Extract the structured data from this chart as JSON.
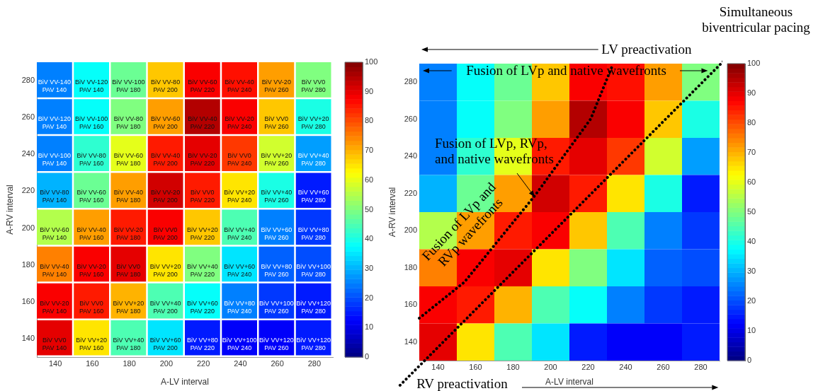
{
  "chart_data": [
    {
      "type": "heatmap",
      "xlabel": "A-LV interval",
      "ylabel": "A-RV interval",
      "categories": [
        "140",
        "160",
        "180",
        "200",
        "220",
        "240",
        "260",
        "280"
      ],
      "y_categories": [
        "280",
        "260",
        "240",
        "220",
        "200",
        "180",
        "160",
        "140"
      ],
      "clim": [
        0,
        100
      ],
      "cticks": [
        0,
        10,
        20,
        30,
        40,
        50,
        60,
        70,
        80,
        90,
        100
      ],
      "cells": [
        [
          25,
          38,
          48,
          68,
          88,
          86,
          72,
          50
        ],
        [
          25,
          38,
          50,
          72,
          95,
          88,
          68,
          40
        ],
        [
          25,
          42,
          60,
          85,
          90,
          82,
          58,
          28
        ],
        [
          30,
          48,
          72,
          92,
          85,
          65,
          40,
          15
        ],
        [
          55,
          72,
          85,
          88,
          68,
          45,
          25,
          18
        ],
        [
          75,
          88,
          90,
          65,
          50,
          35,
          22,
          20
        ],
        [
          88,
          85,
          70,
          45,
          38,
          25,
          18,
          15
        ],
        [
          90,
          65,
          45,
          35,
          15,
          12,
          12,
          15
        ]
      ],
      "cell_labels": [
        [
          "BiV VV-140\nPAV 140",
          "BiV VV-120\nPAV 140",
          "BiV VV-100\nPAV 180",
          "BiV VV-80\nPAV 200",
          "BiV VV-60\nPAV 220",
          "BiV VV-40\nPAV 240",
          "BiV VV-20\nPAV 260",
          "BiV VV0\nPAV 280"
        ],
        [
          "BiV VV-120\nPAV 140",
          "BiV VV-100\nPAV 160",
          "BiV VV-80\nPAV 180",
          "BiV VV-60\nPAV 200",
          "BiV VV-40\nPAV 220",
          "BiV VV-20\nPAV 240",
          "BiV VV0\nPAV 260",
          "BiV VV+20\nPAV 280"
        ],
        [
          "BiV VV-100\nPAV 140",
          "BiV VV-80\nPAV 160",
          "BiV VV-60\nPAV 180",
          "BiV VV-40\nPAV 200",
          "BiV VV-20\nPAV 220",
          "BiV VV0\nPAV 240",
          "BiV VV+20\nPAV 260",
          "BiV VV+40\nPAV 280"
        ],
        [
          "BiV VV-80\nPAV 140",
          "BiV VV-60\nPAV 160",
          "BiV VV-40\nPAV 180",
          "BiV VV-20\nPAV 200",
          "BiV VV0\nPAV 220",
          "BiV VV+20\nPAV 240",
          "BiV VV+40\nPAV 260",
          "BiV VV+60\nPAV 280"
        ],
        [
          "BiV VV-60\nPAV 140",
          "BiV VV-40\nPAV 160",
          "BiV VV-20\nPAV 180",
          "BiV VV0\nPAV 200",
          "BiV VV+20\nPAV 220",
          "BiV VV+40\nPAV 240",
          "BiV VV+60\nPAV 260",
          "BiV VV+80\nPAV 280"
        ],
        [
          "BiV VV-40\nPAV 140",
          "BiV VV-20\nPAV 160",
          "BiV VV0\nPAV 180",
          "BiV VV+20\nPAV 200",
          "BiV VV+40\nPAV 220",
          "BiV VV+60\nPAV 240",
          "BiV VV+80\nPAV 260",
          "BiV VV+100\nPAV 280"
        ],
        [
          "BiV VV-20\nPAV 140",
          "BiV VV0\nPAV 160",
          "BiV VV+20\nPAV 180",
          "BiV VV+40\nPAV 200",
          "BiV VV+60\nPAV 220",
          "BiV VV+80\nPAV 240",
          "BiV VV+100\nPAV 260",
          "BiV VV+120\nPAV 280"
        ],
        [
          "BiV VV0\nPAV 140",
          "BiV VV+20\nPAV 160",
          "BiV VV+40\nPAV 180",
          "BiV VV+60\nPAV 200",
          "BiV VV+80\nPAV 220",
          "BiV VV+100\nPAV 240",
          "BiV VV+120\nPAV 260",
          "BiV VV+120\nPAV 280"
        ]
      ]
    },
    {
      "type": "heatmap",
      "xlabel": "A-LV interval",
      "ylabel": "A-RV interval",
      "categories": [
        "140",
        "160",
        "180",
        "200",
        "220",
        "240",
        "260",
        "280"
      ],
      "y_categories": [
        "280",
        "260",
        "240",
        "220",
        "200",
        "180",
        "160",
        "140"
      ],
      "clim": [
        0,
        100
      ],
      "cticks": [
        0,
        10,
        20,
        30,
        40,
        50,
        60,
        70,
        80,
        90,
        100
      ],
      "cells": [
        [
          25,
          38,
          48,
          68,
          88,
          86,
          72,
          50
        ],
        [
          25,
          38,
          50,
          72,
          95,
          88,
          68,
          40
        ],
        [
          25,
          42,
          60,
          85,
          90,
          82,
          58,
          28
        ],
        [
          30,
          48,
          72,
          92,
          85,
          65,
          40,
          15
        ],
        [
          55,
          72,
          85,
          88,
          68,
          45,
          25,
          18
        ],
        [
          75,
          88,
          90,
          65,
          50,
          35,
          22,
          20
        ],
        [
          88,
          85,
          70,
          45,
          38,
          25,
          18,
          15
        ],
        [
          90,
          65,
          45,
          35,
          15,
          12,
          12,
          15
        ]
      ],
      "annotations": [
        "Simultaneous\nbiventricular pacing",
        "LV preactivation",
        "RV preactivation",
        "Fusion of LVp and native wavefronts",
        "Fusion of LVp, RVp,\nand native wavefronts",
        "Fusion of LVp and\nRVp wavefronts"
      ]
    }
  ]
}
